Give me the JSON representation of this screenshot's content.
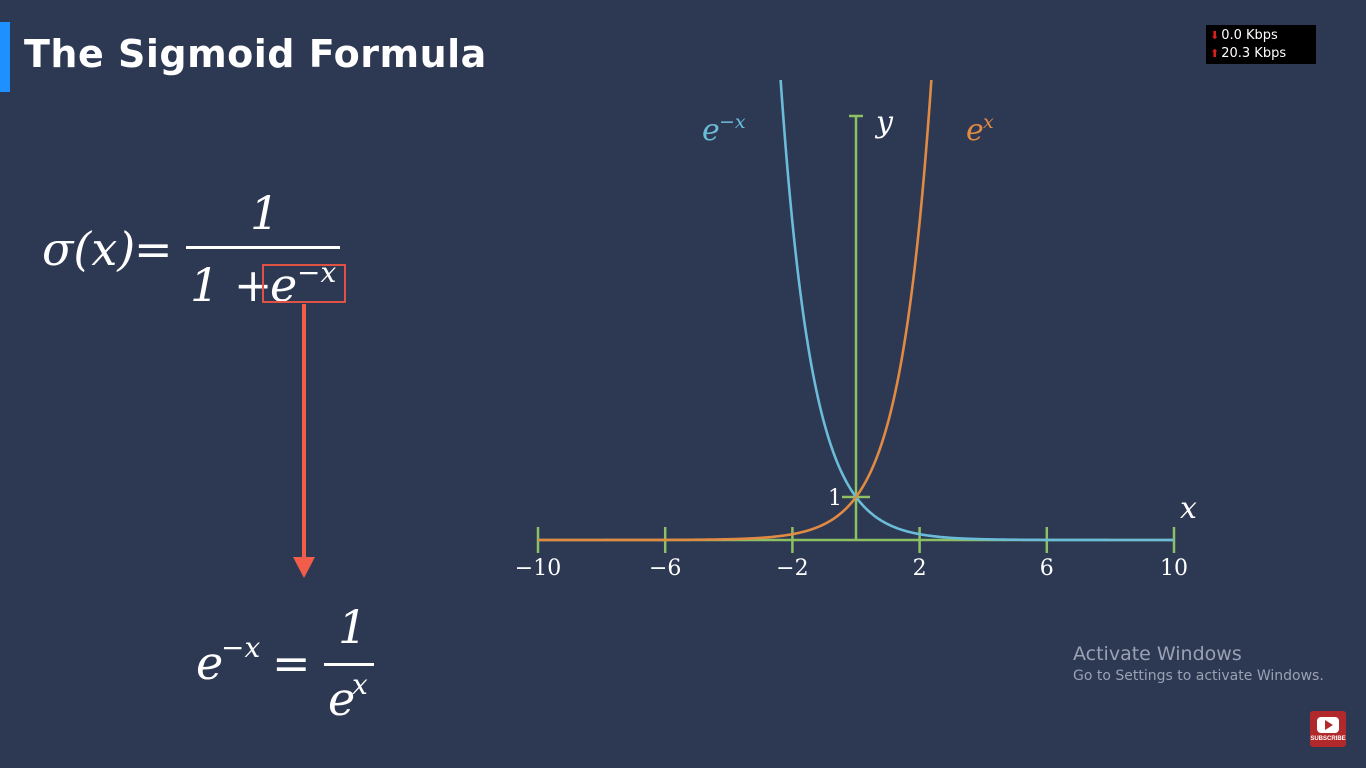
{
  "slide": {
    "title": "The Sigmoid Formula",
    "accent_color": "#1e90ff",
    "background_color": "#2d3853"
  },
  "network_meter": {
    "download": "0.0 Kbps",
    "upload": "20.3 Kbps",
    "down_icon": "down-arrow-icon",
    "up_icon": "up-arrow-icon"
  },
  "formula_main": {
    "lhs": "σ(x)",
    "equals": "=",
    "numerator": "1",
    "denominator_prefix": "1 +",
    "highlighted_term_base": "e",
    "highlighted_term_exponent": "−x",
    "highlight_color": "#e05244"
  },
  "formula_second": {
    "lhs_base": "e",
    "lhs_exponent": "−x",
    "equals": "=",
    "numerator": "1",
    "denominator_base": "e",
    "denominator_exponent": "x"
  },
  "chart_data": {
    "type": "line",
    "xlim": [
      -10,
      10
    ],
    "x_ticks": [
      -10,
      -6,
      -2,
      2,
      6,
      10
    ],
    "x_tick_labels": [
      "−10",
      "−6",
      "−2",
      "2",
      "6",
      "10"
    ],
    "y_tick_value": 1,
    "y_tick_label": "1",
    "xlabel": "x",
    "ylabel": "y",
    "axis_color": "#8cc063",
    "series": [
      {
        "name": "e−x",
        "label_base": "e",
        "label_exponent": "−x",
        "color": "#6bbcd8",
        "function": "exp(-x)",
        "x": [
          -2.4,
          -2,
          -1,
          0,
          1,
          2,
          3,
          4,
          6,
          10
        ],
        "values": [
          11.02,
          7.39,
          2.72,
          1,
          0.368,
          0.135,
          0.05,
          0.018,
          0.002,
          4.54e-05
        ]
      },
      {
        "name": "ex",
        "label_base": "e",
        "label_exponent": "x",
        "color": "#e08a44",
        "function": "exp(x)",
        "x": [
          -10,
          -6,
          -4,
          -3,
          -2,
          -1,
          0,
          1,
          2,
          2.4
        ],
        "values": [
          4.54e-05,
          0.002,
          0.018,
          0.05,
          0.135,
          0.368,
          1,
          2.72,
          7.39,
          11.02
        ]
      }
    ]
  },
  "watermark": {
    "line1": "Activate Windows",
    "line2": "Go to Settings to activate Windows."
  },
  "subscribe_button": {
    "label": "SUBSCRIBE",
    "icon": "youtube-play-icon",
    "color": "#b2292c"
  }
}
